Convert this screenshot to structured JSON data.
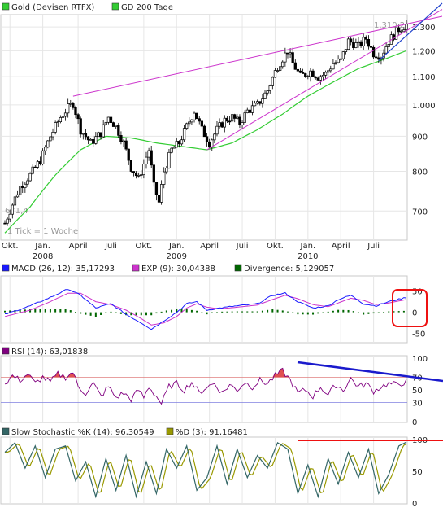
{
  "colors": {
    "price": "#000000",
    "bull_fill": "#ffffff",
    "bear_fill": "#000000",
    "ma200": "#33cc33",
    "trend": "#cc33cc",
    "channel_low": "#cc33cc",
    "breakout": "#2244cc",
    "macd": "#1a1aff",
    "macd_signal": "#cc33cc",
    "divergence": "#006600",
    "rsi": "#800080",
    "rsi_fill": "#e05050",
    "stoch_k": "#336666",
    "stoch_d": "#999900",
    "red_annot": "#ee1111",
    "blue_annot": "#1a1acc",
    "grid": "#e6e6e6",
    "panel_border": "#c8c8c8"
  },
  "legend": {
    "price": "Gold (Devisen RTFX)",
    "ma": "GD 200 Tage",
    "macd": "MACD (26, 12): 35,17293",
    "exp": "EXP (9): 30,04388",
    "divergence": "Divergence: 5,129057",
    "rsi": "RSI (14): 63,01838",
    "stoch_k": "Slow Stochastic %K (14): 96,30549",
    "stoch_d": "%D (3): 91,16481"
  },
  "annotations": {
    "tick_note": "1 Tick = 1 Woche",
    "first_value": "671,4",
    "last_value": "1.310,2"
  },
  "chart_data": [
    {
      "type": "candlestick",
      "title": "Gold (Devisen RTFX)",
      "y_scale": "log",
      "ylim": [
        640,
        1340
      ],
      "y_ticks": [
        "1.300",
        "1.200",
        "1.100",
        "1.000",
        "900",
        "800",
        "700"
      ],
      "y_tick_values": [
        1300,
        1200,
        1100,
        1000,
        900,
        800,
        700
      ],
      "x_ticks": [
        {
          "label": "Okt.",
          "w": 2
        },
        {
          "label": "Jan.",
          "w": 15
        },
        {
          "label": "April",
          "w": 29
        },
        {
          "label": "Juli",
          "w": 42
        },
        {
          "label": "Okt.",
          "w": 55
        },
        {
          "label": "Jan.",
          "w": 68
        },
        {
          "label": "April",
          "w": 81
        },
        {
          "label": "Juli",
          "w": 94
        },
        {
          "label": "Okt.",
          "w": 107
        },
        {
          "label": "Jan.",
          "w": 120
        },
        {
          "label": "April",
          "w": 133
        },
        {
          "label": "Juli",
          "w": 146
        }
      ],
      "year_labels": [
        {
          "label": "2008",
          "w": 15
        },
        {
          "label": "2009",
          "w": 68
        },
        {
          "label": "2010",
          "w": 120
        }
      ],
      "weeks": 160,
      "price_anchors": [
        [
          0,
          672
        ],
        [
          6,
          760
        ],
        [
          10,
          790
        ],
        [
          14,
          830
        ],
        [
          18,
          900
        ],
        [
          22,
          960
        ],
        [
          25,
          990
        ],
        [
          27,
          1005
        ],
        [
          30,
          920
        ],
        [
          34,
          880
        ],
        [
          38,
          910
        ],
        [
          41,
          960
        ],
        [
          44,
          930
        ],
        [
          47,
          880
        ],
        [
          50,
          810
        ],
        [
          53,
          780
        ],
        [
          55,
          820
        ],
        [
          57,
          860
        ],
        [
          59,
          760
        ],
        [
          61,
          720
        ],
        [
          63,
          800
        ],
        [
          66,
          860
        ],
        [
          69,
          880
        ],
        [
          72,
          930
        ],
        [
          75,
          980
        ],
        [
          78,
          920
        ],
        [
          81,
          880
        ],
        [
          84,
          920
        ],
        [
          87,
          950
        ],
        [
          90,
          960
        ],
        [
          93,
          940
        ],
        [
          96,
          980
        ],
        [
          100,
          1000
        ],
        [
          104,
          1050
        ],
        [
          108,
          1140
        ],
        [
          112,
          1200
        ],
        [
          114,
          1150
        ],
        [
          117,
          1100
        ],
        [
          121,
          1120
        ],
        [
          124,
          1100
        ],
        [
          127,
          1110
        ],
        [
          130,
          1150
        ],
        [
          133,
          1160
        ],
        [
          136,
          1240
        ],
        [
          140,
          1220
        ],
        [
          143,
          1250
        ],
        [
          146,
          1190
        ],
        [
          149,
          1180
        ],
        [
          152,
          1240
        ],
        [
          156,
          1290
        ],
        [
          159,
          1310
        ]
      ],
      "ma200_anchors": [
        [
          0,
          650
        ],
        [
          10,
          710
        ],
        [
          20,
          790
        ],
        [
          30,
          860
        ],
        [
          40,
          900
        ],
        [
          50,
          895
        ],
        [
          60,
          880
        ],
        [
          70,
          870
        ],
        [
          80,
          860
        ],
        [
          90,
          880
        ],
        [
          100,
          920
        ],
        [
          110,
          970
        ],
        [
          120,
          1030
        ],
        [
          130,
          1080
        ],
        [
          140,
          1130
        ],
        [
          150,
          1165
        ],
        [
          159,
          1200
        ]
      ],
      "trendlines": [
        {
          "name": "upper-trend",
          "from": [
            27,
            1030
          ],
          "to": [
            159,
            1340
          ]
        },
        {
          "name": "lower-channel",
          "from": [
            80,
            860
          ],
          "to": [
            159,
            1270
          ]
        },
        {
          "name": "breakout-line",
          "from": [
            148,
            1160
          ],
          "to": [
            159,
            1340
          ]
        }
      ]
    },
    {
      "type": "line",
      "title": "MACD (26, 12)",
      "ylim": [
        -70,
        80
      ],
      "y_ticks": [
        50,
        0,
        -50
      ],
      "macd_anchors": [
        [
          0,
          -5
        ],
        [
          10,
          15
        ],
        [
          18,
          35
        ],
        [
          25,
          55
        ],
        [
          30,
          40
        ],
        [
          36,
          10
        ],
        [
          42,
          20
        ],
        [
          48,
          -5
        ],
        [
          54,
          -25
        ],
        [
          58,
          -40
        ],
        [
          63,
          -20
        ],
        [
          68,
          0
        ],
        [
          72,
          20
        ],
        [
          76,
          25
        ],
        [
          80,
          5
        ],
        [
          85,
          10
        ],
        [
          92,
          15
        ],
        [
          100,
          20
        ],
        [
          106,
          40
        ],
        [
          111,
          45
        ],
        [
          116,
          25
        ],
        [
          122,
          10
        ],
        [
          128,
          15
        ],
        [
          132,
          30
        ],
        [
          137,
          40
        ],
        [
          142,
          20
        ],
        [
          147,
          15
        ],
        [
          152,
          25
        ],
        [
          159,
          35
        ]
      ],
      "signal_anchors": [
        [
          0,
          -10
        ],
        [
          10,
          5
        ],
        [
          18,
          25
        ],
        [
          25,
          45
        ],
        [
          30,
          45
        ],
        [
          36,
          25
        ],
        [
          42,
          18
        ],
        [
          48,
          5
        ],
        [
          54,
          -15
        ],
        [
          58,
          -30
        ],
        [
          63,
          -25
        ],
        [
          68,
          -10
        ],
        [
          72,
          10
        ],
        [
          76,
          20
        ],
        [
          80,
          12
        ],
        [
          85,
          8
        ],
        [
          92,
          12
        ],
        [
          100,
          17
        ],
        [
          106,
          30
        ],
        [
          111,
          40
        ],
        [
          116,
          32
        ],
        [
          122,
          18
        ],
        [
          128,
          13
        ],
        [
          132,
          22
        ],
        [
          137,
          33
        ],
        [
          142,
          28
        ],
        [
          147,
          18
        ],
        [
          152,
          22
        ],
        [
          159,
          30
        ]
      ]
    },
    {
      "type": "line",
      "title": "RSI (14)",
      "ylim": [
        0,
        100
      ],
      "y_ticks": [
        100,
        70,
        50,
        30,
        0
      ],
      "rsi_anchors": [
        [
          0,
          60
        ],
        [
          3,
          72
        ],
        [
          6,
          65
        ],
        [
          9,
          75
        ],
        [
          12,
          60
        ],
        [
          15,
          70
        ],
        [
          18,
          62
        ],
        [
          21,
          75
        ],
        [
          24,
          70
        ],
        [
          27,
          78
        ],
        [
          29,
          55
        ],
        [
          32,
          45
        ],
        [
          35,
          60
        ],
        [
          38,
          40
        ],
        [
          41,
          55
        ],
        [
          44,
          38
        ],
        [
          47,
          45
        ],
        [
          50,
          35
        ],
        [
          53,
          50
        ],
        [
          55,
          38
        ],
        [
          57,
          55
        ],
        [
          60,
          40
        ],
        [
          62,
          28
        ],
        [
          65,
          55
        ],
        [
          68,
          60
        ],
        [
          71,
          50
        ],
        [
          74,
          62
        ],
        [
          77,
          45
        ],
        [
          80,
          55
        ],
        [
          83,
          60
        ],
        [
          86,
          45
        ],
        [
          89,
          58
        ],
        [
          92,
          50
        ],
        [
          95,
          62
        ],
        [
          98,
          55
        ],
        [
          101,
          65
        ],
        [
          104,
          60
        ],
        [
          107,
          72
        ],
        [
          110,
          80
        ],
        [
          113,
          65
        ],
        [
          116,
          45
        ],
        [
          119,
          50
        ],
        [
          122,
          40
        ],
        [
          125,
          55
        ],
        [
          128,
          42
        ],
        [
          131,
          58
        ],
        [
          134,
          50
        ],
        [
          137,
          68
        ],
        [
          140,
          55
        ],
        [
          143,
          60
        ],
        [
          146,
          48
        ],
        [
          149,
          55
        ],
        [
          152,
          60
        ],
        [
          155,
          58
        ],
        [
          159,
          63
        ]
      ]
    },
    {
      "type": "line",
      "title": "Slow Stochastic %K (14)",
      "ylim": [
        0,
        100
      ],
      "y_ticks": [
        100,
        50,
        0
      ],
      "stoch_anchors": [
        [
          0,
          80
        ],
        [
          4,
          95
        ],
        [
          8,
          55
        ],
        [
          12,
          90
        ],
        [
          16,
          40
        ],
        [
          20,
          85
        ],
        [
          24,
          90
        ],
        [
          28,
          35
        ],
        [
          32,
          65
        ],
        [
          36,
          10
        ],
        [
          40,
          70
        ],
        [
          44,
          20
        ],
        [
          48,
          75
        ],
        [
          52,
          10
        ],
        [
          56,
          65
        ],
        [
          60,
          15
        ],
        [
          64,
          85
        ],
        [
          68,
          55
        ],
        [
          72,
          90
        ],
        [
          76,
          20
        ],
        [
          80,
          40
        ],
        [
          84,
          90
        ],
        [
          88,
          30
        ],
        [
          92,
          85
        ],
        [
          96,
          40
        ],
        [
          100,
          75
        ],
        [
          104,
          55
        ],
        [
          108,
          95
        ],
        [
          112,
          85
        ],
        [
          116,
          15
        ],
        [
          120,
          60
        ],
        [
          124,
          10
        ],
        [
          128,
          70
        ],
        [
          132,
          30
        ],
        [
          136,
          80
        ],
        [
          140,
          40
        ],
        [
          144,
          85
        ],
        [
          148,
          15
        ],
        [
          152,
          45
        ],
        [
          156,
          90
        ],
        [
          159,
          96
        ]
      ]
    }
  ]
}
